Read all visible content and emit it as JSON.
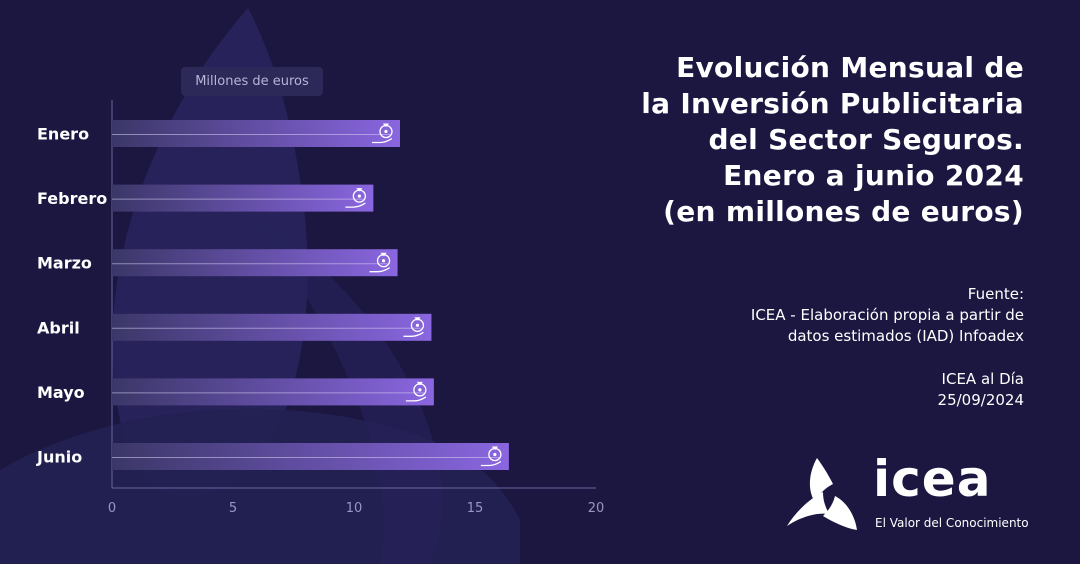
{
  "title_lines": [
    "Evolución Mensual de",
    "la Inversión Publicitaria",
    "del Sector Seguros.",
    "Enero a junio 2024",
    "(en millones de euros)"
  ],
  "source": {
    "label": "Fuente:",
    "line1": "ICEA - Elaboración propia a partir de",
    "line2": "datos estimados (IAD) Infoadex"
  },
  "credit": {
    "publication": "ICEA al Día",
    "date": "25/09/2024"
  },
  "logo": {
    "name": "icea",
    "tagline": "El Valor del Conocimiento"
  },
  "colors": {
    "background": "#1b1740",
    "bar_start": "#3b3768",
    "bar_end": "#8a66e0"
  },
  "chart_data": {
    "type": "bar",
    "orientation": "horizontal",
    "unit_label": "Millones de euros",
    "categories": [
      "Enero",
      "Febrero",
      "Marzo",
      "Abril",
      "Mayo",
      "Junio"
    ],
    "values": [
      11.9,
      10.8,
      11.8,
      13.2,
      13.3,
      16.4
    ],
    "xlim": [
      0,
      20
    ],
    "xticks": [
      0,
      5,
      10,
      15,
      20
    ],
    "bar_icon": "money-bag-in-hand-icon",
    "grid": false,
    "legend": "none"
  }
}
